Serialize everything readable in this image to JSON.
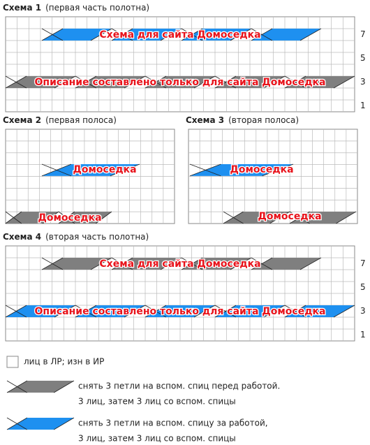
{
  "schemes": [
    {
      "title": "Схема 1",
      "subtitle": "(первая часть полотна)",
      "watermarks": [
        "Схема для сайта Домоседка",
        "Описание составлено только для сайта Домоседка"
      ],
      "row_numbers": [
        7,
        5,
        3,
        1
      ]
    },
    {
      "title": "Схема 2",
      "subtitle": "(первая полоса)",
      "watermarks": [
        "Домоседка",
        "Домоседка"
      ]
    },
    {
      "title": "Схема 3",
      "subtitle": "(вторая полоса)",
      "watermarks": [
        "Домоседка",
        "Домоседка"
      ]
    },
    {
      "title": "Схема 4",
      "subtitle": "(вторая часть полотна)",
      "watermarks": [
        "Схема для сайта Домоседка",
        "Описание составлено только для сайта Домоседка"
      ],
      "row_numbers": [
        7,
        5,
        3,
        1
      ]
    }
  ],
  "legend": [
    {
      "lines": [
        "лиц в ЛР; изн в ИР"
      ]
    },
    {
      "lines": [
        "снять 3 петли на вспом. спиц перед работой.",
        "3 лиц, затем 3 лиц со вспом. спицы"
      ]
    },
    {
      "lines": [
        "снять 3 петли на вспом. спицу за работой,",
        "3 лиц, затем 3 лиц со вспом. спицы"
      ]
    }
  ]
}
